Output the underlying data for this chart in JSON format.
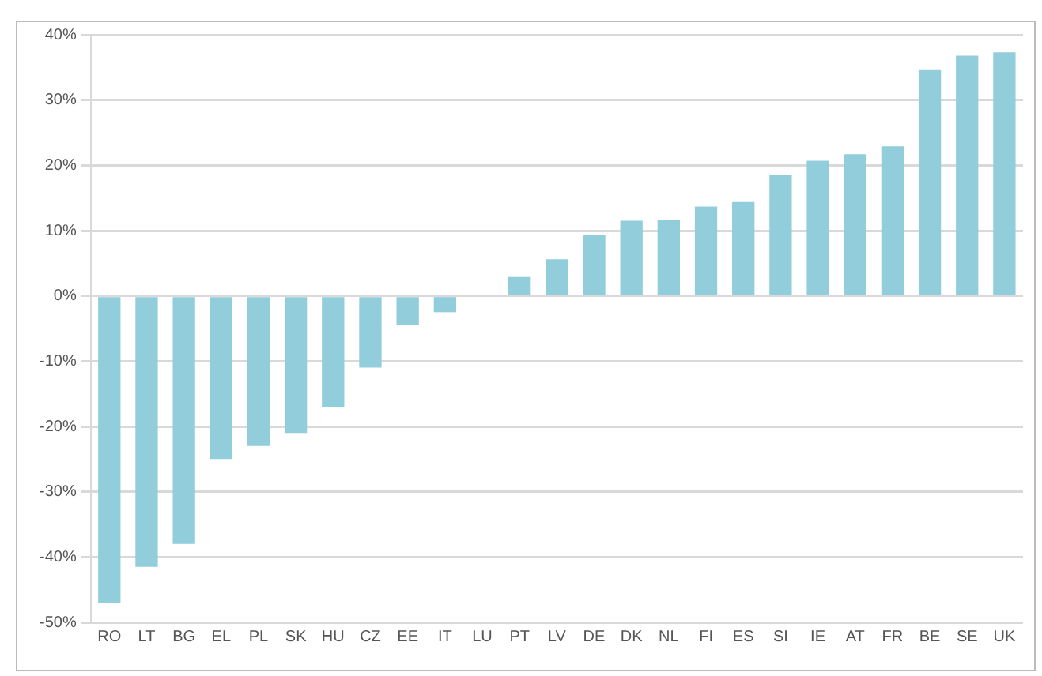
{
  "chart_data": {
    "type": "bar",
    "categories": [
      "RO",
      "LT",
      "BG",
      "EL",
      "PL",
      "SK",
      "HU",
      "CZ",
      "EE",
      "IT",
      "LU",
      "PT",
      "LV",
      "DE",
      "DK",
      "NL",
      "FI",
      "ES",
      "SI",
      "IE",
      "AT",
      "FR",
      "BE",
      "SE",
      "UK"
    ],
    "values": [
      -47,
      -41.5,
      -38,
      -25,
      -23,
      -21,
      -17,
      -11,
      -4.5,
      -2.5,
      0,
      2.9,
      5.6,
      9.3,
      11.5,
      11.7,
      13.7,
      14.4,
      18.5,
      20.7,
      21.7,
      22.9,
      34.6,
      36.8,
      37.3
    ],
    "color": "#92cddc",
    "ylim": [
      -50,
      40
    ],
    "yticks": [
      {
        "value": -50,
        "label": "-50%"
      },
      {
        "value": -40,
        "label": "-40%"
      },
      {
        "value": -30,
        "label": "-30%"
      },
      {
        "value": -20,
        "label": "-20%"
      },
      {
        "value": -10,
        "label": "-10%"
      },
      {
        "value": 0,
        "label": "0%"
      },
      {
        "value": 10,
        "label": "10%"
      },
      {
        "value": 20,
        "label": "20%"
      },
      {
        "value": 30,
        "label": "30%"
      },
      {
        "value": 40,
        "label": "40%"
      }
    ],
    "grid": "y",
    "legend": false
  }
}
